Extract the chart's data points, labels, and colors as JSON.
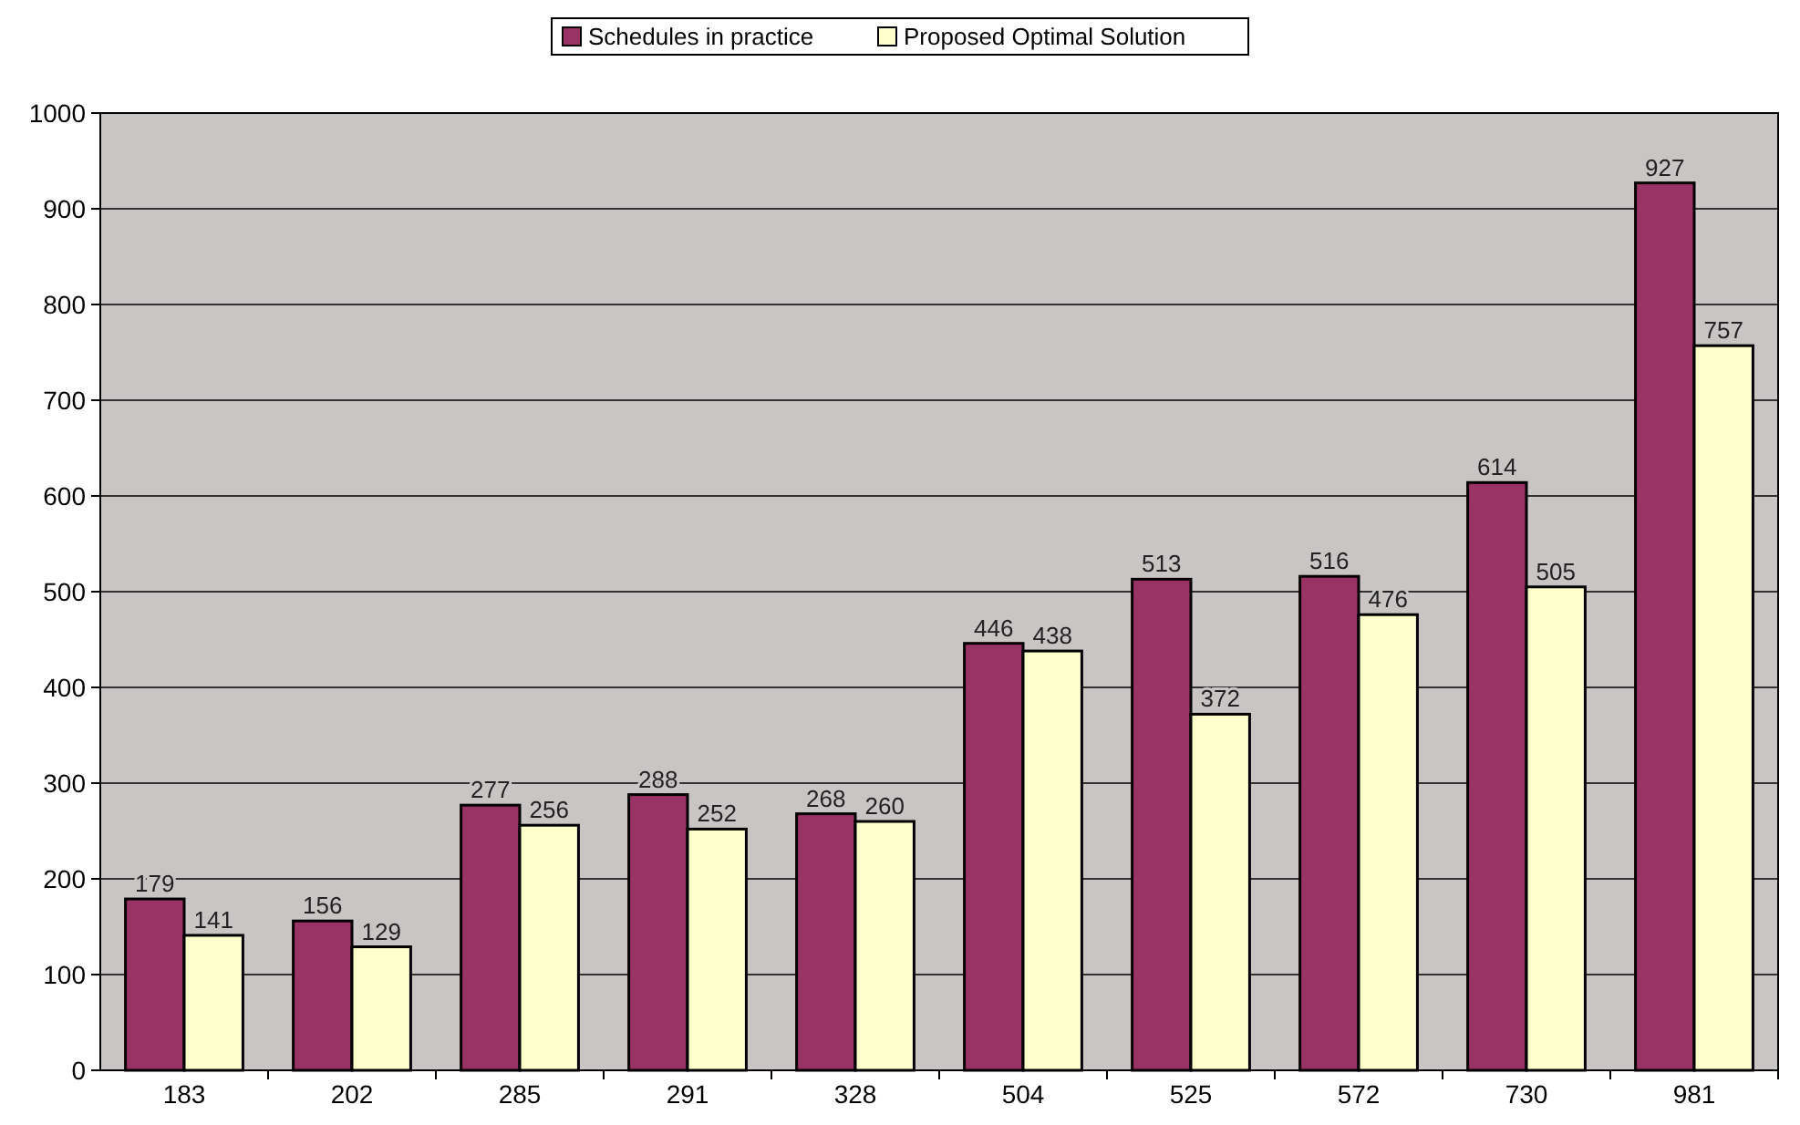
{
  "chart_data": {
    "type": "bar",
    "categories": [
      "183",
      "202",
      "285",
      "291",
      "328",
      "504",
      "525",
      "572",
      "730",
      "981"
    ],
    "series": [
      {
        "name": "Schedules in practice",
        "color": "#993366",
        "values": [
          179,
          156,
          277,
          288,
          268,
          446,
          513,
          516,
          614,
          927
        ]
      },
      {
        "name": "Proposed Optimal Solution",
        "color": "#ffffcc",
        "values": [
          141,
          129,
          256,
          252,
          260,
          438,
          372,
          476,
          505,
          757
        ]
      }
    ],
    "ylim": [
      0,
      1000
    ],
    "yticks": [
      0,
      100,
      200,
      300,
      400,
      500,
      600,
      700,
      800,
      900,
      1000
    ],
    "grid": "y",
    "legend": "top",
    "data_labels": true
  }
}
